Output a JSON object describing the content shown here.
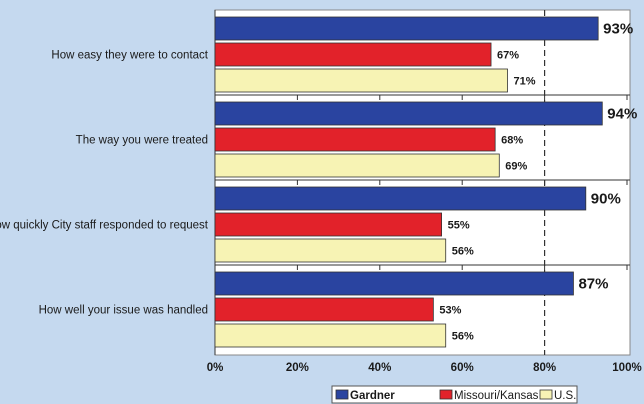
{
  "chart_data": {
    "type": "bar",
    "orientation": "horizontal",
    "categories": [
      "How easy they were to contact",
      "The way you were treated",
      "How quickly City staff responded to request",
      "How well your issue was handled"
    ],
    "series": [
      {
        "name": "Gardner",
        "values": [
          93,
          94,
          90,
          87
        ],
        "color": "#2a44a0",
        "labels": [
          "93%",
          "94%",
          "90%",
          "87%"
        ]
      },
      {
        "name": "Missouri/Kansas",
        "values": [
          67,
          68,
          55,
          53
        ],
        "color": "#e2222a",
        "labels": [
          "67%",
          "68%",
          "55%",
          "53%"
        ]
      },
      {
        "name": "U.S.",
        "values": [
          71,
          69,
          56,
          56
        ],
        "color": "#f7f3b4",
        "labels": [
          "71%",
          "69%",
          "56%",
          "56%"
        ]
      }
    ],
    "xlim": [
      0,
      100
    ],
    "x_ticks": [
      0,
      20,
      40,
      60,
      80,
      100
    ],
    "x_tick_labels": [
      "0%",
      "20%",
      "40%",
      "60%",
      "80%",
      "100%"
    ],
    "reference_line": 80,
    "legend_position": "bottom",
    "title": "",
    "xlabel": "",
    "ylabel": ""
  }
}
